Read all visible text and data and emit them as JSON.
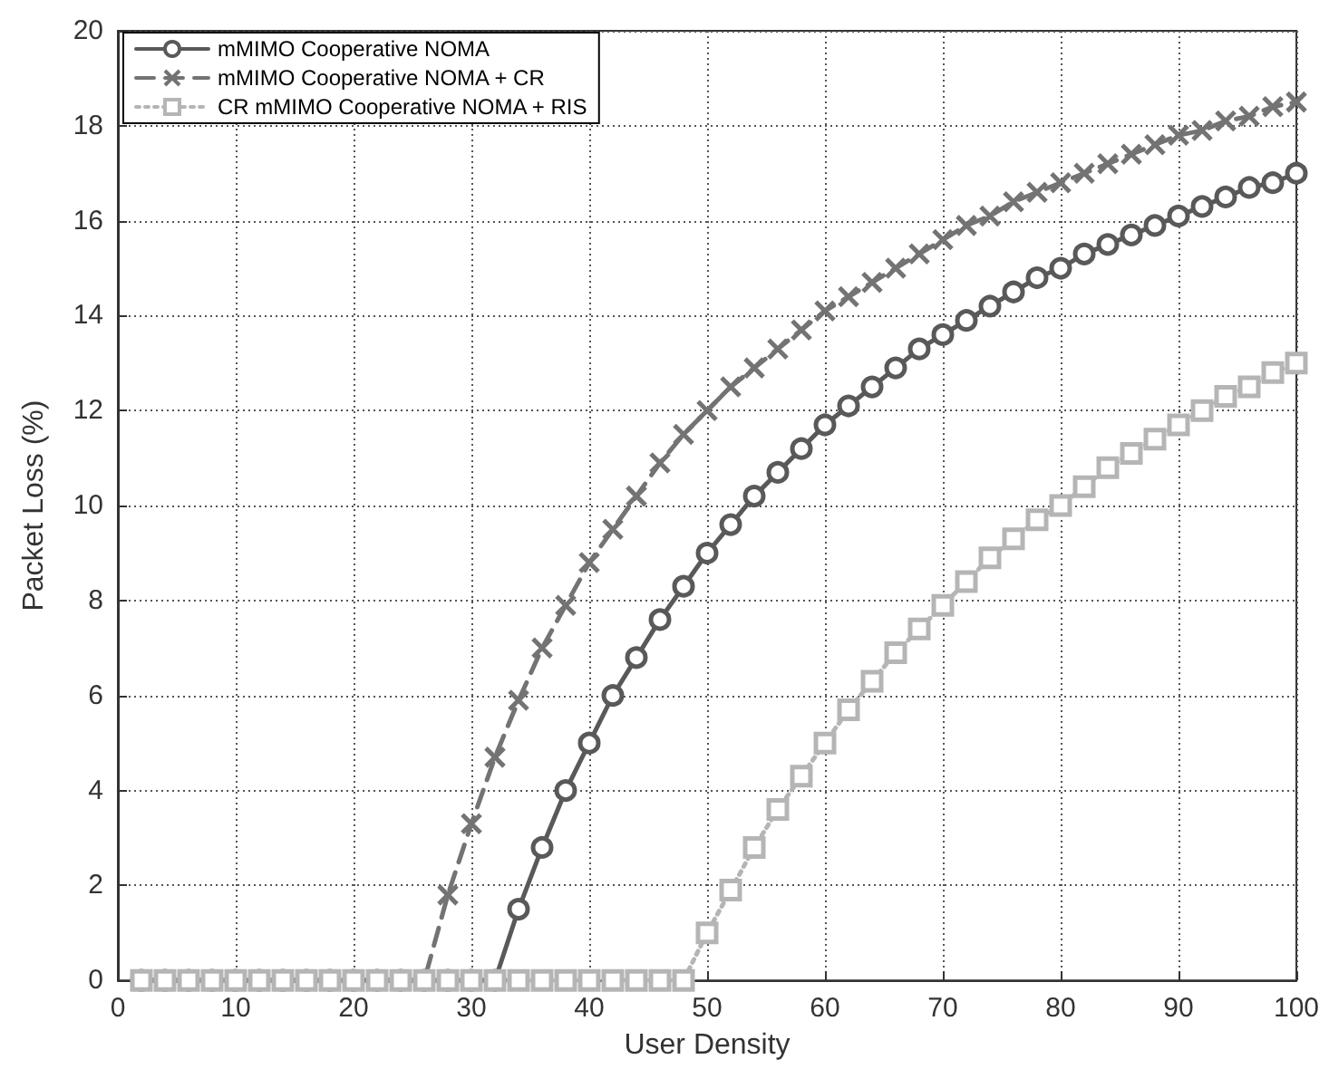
{
  "chart_data": {
    "type": "line",
    "xlabel": "User Density",
    "ylabel": "Packet Loss (%)",
    "x": [
      2,
      4,
      6,
      8,
      10,
      12,
      14,
      16,
      18,
      20,
      22,
      24,
      26,
      28,
      30,
      32,
      34,
      36,
      38,
      40,
      42,
      44,
      46,
      48,
      50,
      52,
      54,
      56,
      58,
      60,
      62,
      64,
      66,
      68,
      70,
      72,
      74,
      76,
      78,
      80,
      82,
      84,
      86,
      88,
      90,
      92,
      94,
      96,
      98,
      100
    ],
    "series": [
      {
        "name": "mMIMO Cooperative NOMA",
        "color": "#595959",
        "marker": "circle",
        "line_style": "solid",
        "values": [
          0,
          0,
          0,
          0,
          0,
          0,
          0,
          0,
          0,
          0,
          0,
          0,
          0,
          0,
          0,
          0,
          1.5,
          2.8,
          4.0,
          5.0,
          6.0,
          6.8,
          7.6,
          8.3,
          9.0,
          9.6,
          10.2,
          10.7,
          11.2,
          11.7,
          12.1,
          12.5,
          12.9,
          13.3,
          13.6,
          13.9,
          14.2,
          14.5,
          14.8,
          15.0,
          15.3,
          15.5,
          15.7,
          15.9,
          16.1,
          16.3,
          16.5,
          16.7,
          16.8,
          17.0
        ]
      },
      {
        "name": "mMIMO Cooperative NOMA + CR",
        "color": "#737373",
        "marker": "cross",
        "line_style": "dashed",
        "values": [
          0,
          0,
          0,
          0,
          0,
          0,
          0,
          0,
          0,
          0,
          0,
          0,
          0,
          1.8,
          3.3,
          4.7,
          5.9,
          7.0,
          7.9,
          8.8,
          9.5,
          10.2,
          10.9,
          11.5,
          12.0,
          12.5,
          12.9,
          13.3,
          13.7,
          14.1,
          14.4,
          14.7,
          15.0,
          15.3,
          15.6,
          15.9,
          16.1,
          16.4,
          16.6,
          16.8,
          17.0,
          17.2,
          17.4,
          17.6,
          17.8,
          17.9,
          18.1,
          18.2,
          18.4,
          18.5
        ]
      },
      {
        "name": "CR mMIMO Cooperative NOMA + RIS",
        "color": "#b5b5b5",
        "marker": "square",
        "line_style": "dotted",
        "values": [
          0,
          0,
          0,
          0,
          0,
          0,
          0,
          0,
          0,
          0,
          0,
          0,
          0,
          0,
          0,
          0,
          0,
          0,
          0,
          0,
          0,
          0,
          0,
          0,
          1.0,
          1.9,
          2.8,
          3.6,
          4.3,
          5.0,
          5.7,
          6.3,
          6.9,
          7.4,
          7.9,
          8.4,
          8.9,
          9.3,
          9.7,
          10.0,
          10.4,
          10.8,
          11.1,
          11.4,
          11.7,
          12.0,
          12.3,
          12.5,
          12.8,
          13.0
        ]
      }
    ],
    "xlim": [
      0,
      100
    ],
    "xticks": [
      0,
      10,
      20,
      30,
      40,
      50,
      60,
      70,
      80,
      90,
      100
    ],
    "ylim": [
      0,
      20
    ],
    "yticks": [
      0,
      2,
      4,
      6,
      8,
      10,
      12,
      14,
      16,
      18,
      20
    ],
    "grid": true,
    "legend": "top left"
  }
}
